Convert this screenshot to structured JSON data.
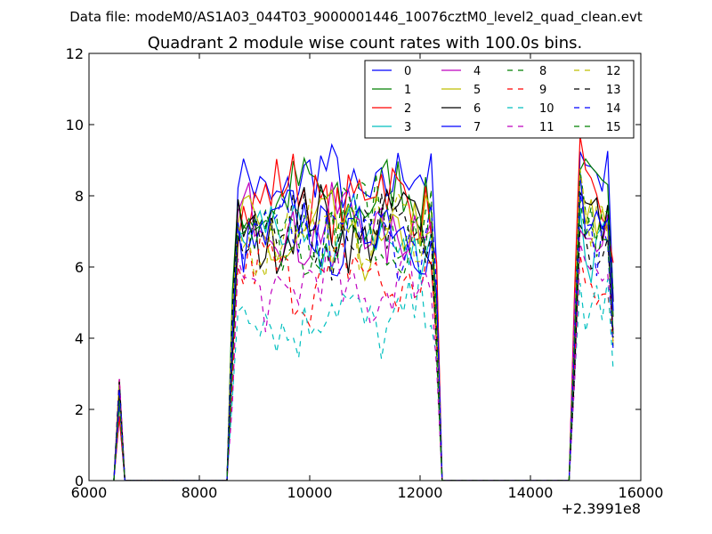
{
  "chart_data": {
    "type": "line",
    "suptitle": "Data file: modeM0/AS1A03_044T03_9000001446_10076cztM0_level2_quad_clean.evt",
    "title": "Quadrant 2 module wise count rates with 100.0s bins.",
    "xlabel": "",
    "ylabel": "",
    "x_offset_label": "+2.3991e8",
    "xlim": [
      6000,
      16000
    ],
    "ylim": [
      0,
      12
    ],
    "x_ticks": [
      6000,
      8000,
      10000,
      12000,
      14000,
      16000
    ],
    "x_tick_labels": [
      "6000",
      "8000",
      "10000",
      "12000",
      "14000",
      "16000"
    ],
    "y_ticks": [
      0,
      2,
      4,
      6,
      8,
      10,
      12
    ],
    "y_tick_labels": [
      "0",
      "2",
      "4",
      "6",
      "8",
      "10",
      "12"
    ],
    "legend_position": "upper-right",
    "segments": [
      {
        "start": 8600,
        "end": 12300
      },
      {
        "start": 14800,
        "end": 15500
      }
    ],
    "series": [
      {
        "name": "0",
        "color": "#0000ff",
        "dash": "solid",
        "level": 8.3
      },
      {
        "name": "1",
        "color": "#008000",
        "dash": "solid",
        "level": 7.9
      },
      {
        "name": "2",
        "color": "#ff0000",
        "dash": "solid",
        "level": 8.0
      },
      {
        "name": "3",
        "color": "#00bfbf",
        "dash": "solid",
        "level": 6.8
      },
      {
        "name": "4",
        "color": "#bf00bf",
        "dash": "solid",
        "level": 7.2
      },
      {
        "name": "5",
        "color": "#bfbf00",
        "dash": "solid",
        "level": 6.8
      },
      {
        "name": "6",
        "color": "#000000",
        "dash": "solid",
        "level": 7.1
      },
      {
        "name": "7",
        "color": "#0000ff",
        "dash": "solid",
        "level": 7.0
      },
      {
        "name": "8",
        "color": "#008000",
        "dash": "dashed",
        "level": 7.3
      },
      {
        "name": "9",
        "color": "#ff0000",
        "dash": "dashed",
        "level": 5.7
      },
      {
        "name": "10",
        "color": "#00bfbf",
        "dash": "dashed",
        "level": 4.6
      },
      {
        "name": "11",
        "color": "#bf00bf",
        "dash": "dashed",
        "level": 5.4
      },
      {
        "name": "12",
        "color": "#bfbf00",
        "dash": "dashed",
        "level": 7.0
      },
      {
        "name": "13",
        "color": "#000000",
        "dash": "dashed",
        "level": 7.0
      },
      {
        "name": "14",
        "color": "#0000ff",
        "dash": "dashed",
        "level": 6.9
      },
      {
        "name": "15",
        "color": "#008000",
        "dash": "dashed",
        "level": 6.9
      }
    ]
  }
}
